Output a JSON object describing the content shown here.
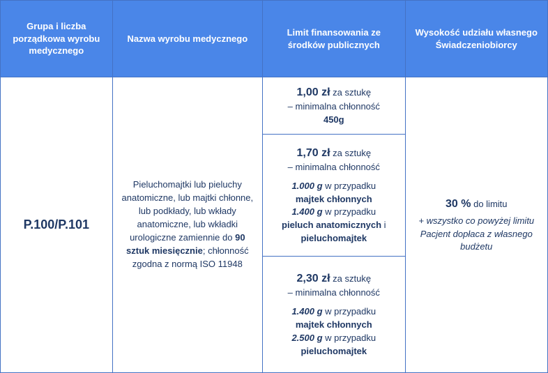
{
  "colors": {
    "header_bg": "#4a86e8",
    "header_text": "#ffffff",
    "border": "#4472c4",
    "body_text": "#1f3864",
    "background": "#ffffff"
  },
  "font": {
    "family": "Arial, sans-serif",
    "header_size_pt": 10,
    "body_size_pt": 10,
    "big_bold_size_pt": 12
  },
  "headers": {
    "col1": "Grupa i liczba porządkowa wyrobu medycznego",
    "col2": "Nazwa wyrobu medycznego",
    "col3": "Limit finansowania ze środków publicznych",
    "col4": "Wysokość udziału własnego Świadczeniobiorcy"
  },
  "col1": {
    "code": "P.100/P.101"
  },
  "col2": {
    "pre": "Pieluchomajtki lub pieluchy anatomiczne, lub majtki chłonne, lub podkłady, lub wkłady anatomiczne, lub wkładki urologiczne zamiennie do ",
    "qty_bold": "90 sztuk miesięcznie",
    "post": "; chłonność zgodna z normą ISO 11948"
  },
  "col3": {
    "r1": {
      "price": "1,00 zł",
      "per": " za sztukę",
      "line2": "– minimalna chłonność",
      "weight": "450g"
    },
    "r2": {
      "price": "1,70 zł",
      "per": " za sztukę",
      "line2": "– minimalna chłonność",
      "w1": "1.000 g",
      "t1": " w przypadku ",
      "p1": "majtek chłonnych",
      "w2": "1.400 g",
      "t2": " w przypadku ",
      "p2a": "pieluch anatomicznych",
      "and": " i ",
      "p2b": "pieluchomajtek"
    },
    "r3": {
      "price": "2,30 zł",
      "per": " za sztukę",
      "line2": "– minimalna chłonność",
      "w1": "1.400 g",
      "t1": " w przypadku ",
      "p1": "majtek chłonnych",
      "w2": "2.500 g",
      "t2": " w przypadku ",
      "p2": "pieluchomajtek"
    }
  },
  "col4": {
    "pct": "30 %",
    "pct_after": " do limitu",
    "note": "+ wszystko co powyżej limitu Pacjent dopłaca z własnego budżetu"
  }
}
